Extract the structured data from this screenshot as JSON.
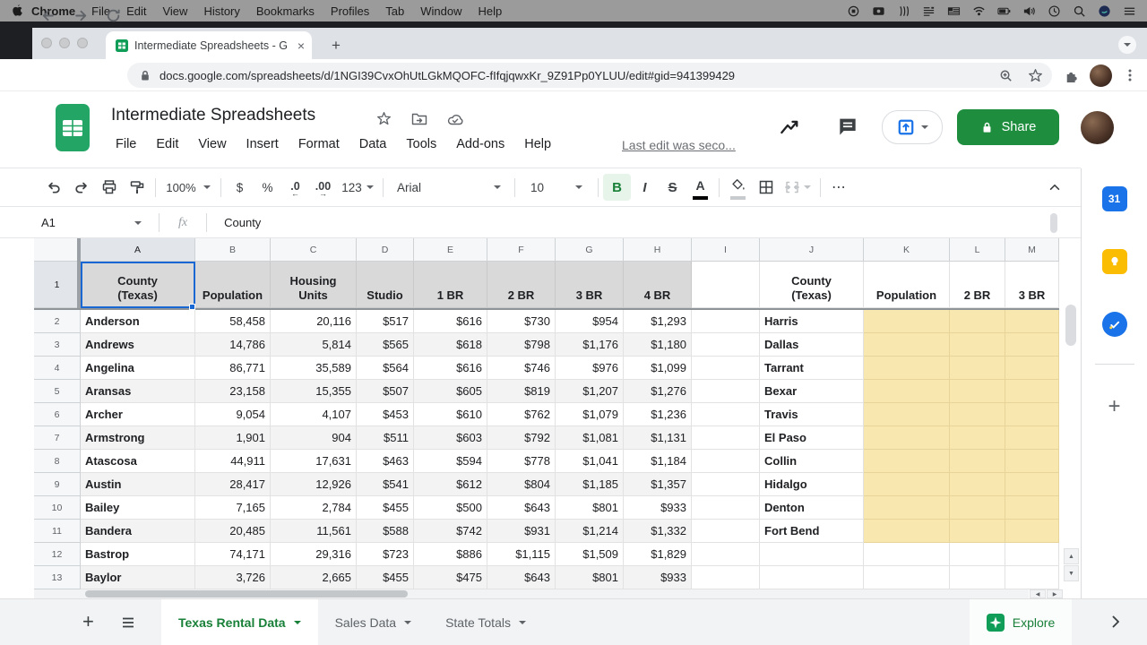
{
  "menubar": {
    "items": [
      "Chrome",
      "File",
      "Edit",
      "View",
      "History",
      "Bookmarks",
      "Profiles",
      "Tab",
      "Window",
      "Help"
    ],
    "status_icons": [
      "screen-record",
      "screen-mirror",
      "shortcuts",
      "display-list",
      "keyboard-flag",
      "wifi",
      "battery",
      "volume",
      "clock",
      "spotlight",
      "assistant",
      "menu-list"
    ]
  },
  "browser": {
    "tab_title": "Intermediate Spreadsheets - G",
    "close_glyph": "×",
    "url": "docs.google.com/spreadsheets/d/1NGI39CvxOhUtLGkMQOFC-fIfqjqwxKr_9Z91Pp0YLUU/edit#gid=941399429"
  },
  "gsheets": {
    "title": "Intermediate Spreadsheets",
    "menus": [
      "File",
      "Edit",
      "View",
      "Insert",
      "Format",
      "Data",
      "Tools",
      "Add-ons",
      "Help"
    ],
    "last_edit": "Last edit was seco...",
    "share_label": "Share"
  },
  "toolbar": {
    "zoom": "100%",
    "currency": "$",
    "percent": "%",
    "decimal_decrease": ".0",
    "decimal_increase": ".00",
    "number_format": "123",
    "font_name": "Arial",
    "font_size": "10",
    "bold": "B",
    "italic": "I",
    "strikethrough": "S",
    "text_color": "A",
    "more": "⋯"
  },
  "formula_bar": {
    "cell_ref": "A1",
    "fx": "fx",
    "value": "County"
  },
  "grid": {
    "col_letters": [
      "A",
      "B",
      "C",
      "D",
      "E",
      "F",
      "G",
      "H",
      "I",
      "J",
      "K",
      "L",
      "M"
    ],
    "header_row": [
      "County\n(Texas)",
      "Population",
      "Housing\nUnits",
      "Studio",
      "1 BR",
      "2 BR",
      "3 BR",
      "4 BR",
      "",
      "County\n(Texas)",
      "Population",
      "2 BR",
      "3 BR"
    ],
    "rows": [
      {
        "num": 2,
        "cells": [
          "Anderson",
          "58,458",
          "20,116",
          "$517",
          "$616",
          "$730",
          "$954",
          "$1,293",
          "",
          "Harris",
          "",
          "",
          ""
        ]
      },
      {
        "num": 3,
        "cells": [
          "Andrews",
          "14,786",
          "5,814",
          "$565",
          "$618",
          "$798",
          "$1,176",
          "$1,180",
          "",
          "Dallas",
          "",
          "",
          ""
        ]
      },
      {
        "num": 4,
        "cells": [
          "Angelina",
          "86,771",
          "35,589",
          "$564",
          "$616",
          "$746",
          "$976",
          "$1,099",
          "",
          "Tarrant",
          "",
          "",
          ""
        ]
      },
      {
        "num": 5,
        "cells": [
          "Aransas",
          "23,158",
          "15,355",
          "$507",
          "$605",
          "$819",
          "$1,207",
          "$1,276",
          "",
          "Bexar",
          "",
          "",
          ""
        ]
      },
      {
        "num": 6,
        "cells": [
          "Archer",
          "9,054",
          "4,107",
          "$453",
          "$610",
          "$762",
          "$1,079",
          "$1,236",
          "",
          "Travis",
          "",
          "",
          ""
        ]
      },
      {
        "num": 7,
        "cells": [
          "Armstrong",
          "1,901",
          "904",
          "$511",
          "$603",
          "$792",
          "$1,081",
          "$1,131",
          "",
          "El Paso",
          "",
          "",
          ""
        ]
      },
      {
        "num": 8,
        "cells": [
          "Atascosa",
          "44,911",
          "17,631",
          "$463",
          "$594",
          "$778",
          "$1,041",
          "$1,184",
          "",
          "Collin",
          "",
          "",
          ""
        ]
      },
      {
        "num": 9,
        "cells": [
          "Austin",
          "28,417",
          "12,926",
          "$541",
          "$612",
          "$804",
          "$1,185",
          "$1,357",
          "",
          "Hidalgo",
          "",
          "",
          ""
        ]
      },
      {
        "num": 10,
        "cells": [
          "Bailey",
          "7,165",
          "2,784",
          "$455",
          "$500",
          "$643",
          "$801",
          "$933",
          "",
          "Denton",
          "",
          "",
          ""
        ]
      },
      {
        "num": 11,
        "cells": [
          "Bandera",
          "20,485",
          "11,561",
          "$588",
          "$742",
          "$931",
          "$1,214",
          "$1,332",
          "",
          "Fort Bend",
          "",
          "",
          ""
        ]
      },
      {
        "num": 12,
        "cells": [
          "Bastrop",
          "74,171",
          "29,316",
          "$723",
          "$886",
          "$1,115",
          "$1,509",
          "$1,829",
          "",
          "",
          "",
          "",
          ""
        ]
      },
      {
        "num": 13,
        "cells": [
          "Baylor",
          "3,726",
          "2,665",
          "$455",
          "$475",
          "$643",
          "$801",
          "$933",
          "",
          "",
          "",
          "",
          ""
        ]
      }
    ],
    "selection": {
      "cell": "A1"
    },
    "calendar_icon_label": "31"
  },
  "footer": {
    "tabs": [
      {
        "label": "Texas Rental Data",
        "active": true
      },
      {
        "label": "Sales Data",
        "active": false
      },
      {
        "label": "State Totals",
        "active": false
      }
    ],
    "explore_label": "Explore"
  },
  "colors": {
    "accent_green": "#188038",
    "share_green": "#1e8e3e",
    "selection_blue": "#1967d2",
    "highlight_yellow": "#f8e7af",
    "header_gray": "#d9d9d9",
    "banding_gray": "#f3f3f3"
  }
}
